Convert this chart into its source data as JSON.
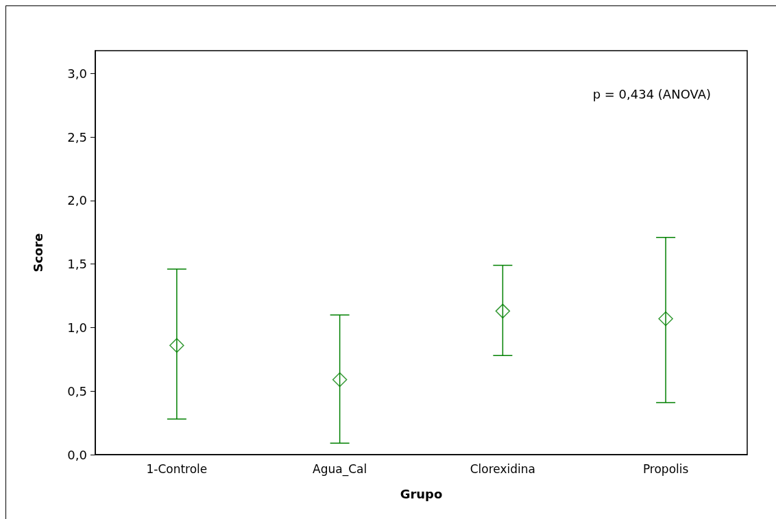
{
  "chart_data": {
    "type": "scatter",
    "xlabel": "Grupo",
    "ylabel": "Score",
    "categories": [
      "1-Controle",
      "Agua_Cal",
      "Clorexidina",
      "Propolis"
    ],
    "series": [
      {
        "color": "#008000",
        "values": [
          0.86,
          0.59,
          1.13,
          1.07
        ],
        "errors": [
          [
            0.28,
            1.46
          ],
          [
            0.09,
            1.1
          ],
          [
            0.78,
            1.49
          ],
          [
            0.41,
            1.71
          ]
        ]
      }
    ],
    "ylim": [
      0,
      3.18
    ],
    "yticks": [
      {
        "value": 0,
        "label": "0,0"
      },
      {
        "value": 0.5,
        "label": "0,5"
      },
      {
        "value": 1,
        "label": "1,0"
      },
      {
        "value": 1.5,
        "label": "1,5"
      },
      {
        "value": 2,
        "label": "2,0"
      },
      {
        "value": 2.5,
        "label": "2,5"
      },
      {
        "value": 3,
        "label": "3,0"
      }
    ],
    "marker": "diamond",
    "grid": false,
    "annotations": [
      "p = 0,434 (ANOVA)"
    ]
  }
}
